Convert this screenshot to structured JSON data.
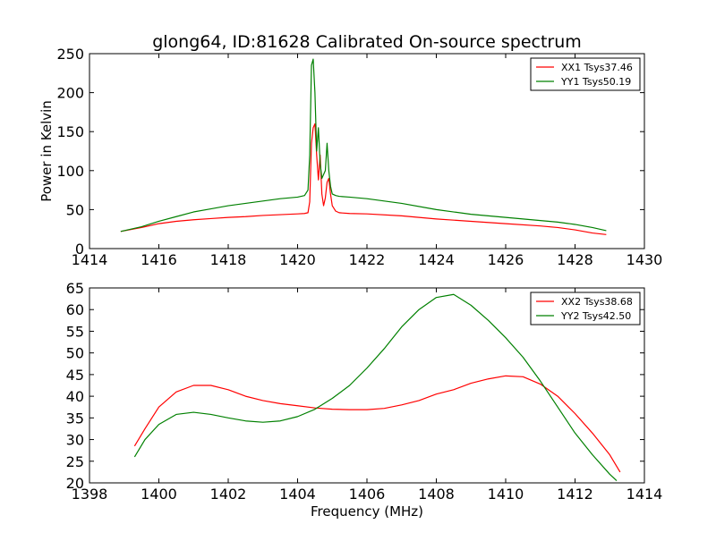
{
  "figure": {
    "title": "glong64, ID:81628 Calibrated On-source spectrum",
    "ylabel": "Power in Kelvin",
    "xlabel": "Frequency (MHz)"
  },
  "chart_data": [
    {
      "type": "line",
      "title": "glong64, ID:81628 Calibrated On-source spectrum",
      "xlabel": "",
      "ylabel": "Power in Kelvin",
      "xlim": [
        1414,
        1430
      ],
      "ylim": [
        0,
        250
      ],
      "xticks": [
        "1414",
        "1416",
        "1418",
        "1420",
        "1422",
        "1424",
        "1426",
        "1428",
        "1430"
      ],
      "yticks": [
        "0",
        "50",
        "100",
        "150",
        "200",
        "250"
      ],
      "legend": "top-right",
      "series": [
        {
          "name": "XX1 Tsys37.46",
          "color": "#ff0000",
          "x": [
            1414.9,
            1415.5,
            1416.0,
            1416.5,
            1417.0,
            1417.5,
            1418.0,
            1418.5,
            1419.0,
            1419.5,
            1420.0,
            1420.2,
            1420.3,
            1420.35,
            1420.4,
            1420.45,
            1420.5,
            1420.55,
            1420.6,
            1420.65,
            1420.7,
            1420.75,
            1420.8,
            1420.85,
            1420.9,
            1420.95,
            1421.0,
            1421.1,
            1421.2,
            1421.5,
            1422.0,
            1423.0,
            1424.0,
            1425.0,
            1426.0,
            1427.0,
            1427.5,
            1428.0,
            1428.5,
            1428.9
          ],
          "values": [
            22,
            27,
            32,
            35,
            37,
            38.5,
            40,
            41,
            42.5,
            43.5,
            44.5,
            45,
            46,
            60,
            135,
            155,
            160,
            120,
            88,
            120,
            70,
            55,
            65,
            85,
            90,
            70,
            55,
            48,
            46,
            45,
            44.5,
            42,
            38,
            35,
            32,
            29,
            27,
            24,
            20,
            18
          ]
        },
        {
          "name": "YY1 Tsys50.19",
          "color": "#008000",
          "x": [
            1414.9,
            1415.5,
            1416.0,
            1416.5,
            1417.0,
            1417.5,
            1418.0,
            1418.5,
            1419.0,
            1419.5,
            1420.0,
            1420.2,
            1420.3,
            1420.35,
            1420.4,
            1420.45,
            1420.5,
            1420.55,
            1420.6,
            1420.65,
            1420.7,
            1420.75,
            1420.8,
            1420.85,
            1420.9,
            1420.95,
            1421.0,
            1421.1,
            1421.2,
            1421.5,
            1422.0,
            1423.0,
            1424.0,
            1425.0,
            1426.0,
            1427.0,
            1427.5,
            1428.0,
            1428.5,
            1428.9
          ],
          "values": [
            22,
            28,
            35,
            41,
            47,
            51,
            55,
            58,
            61,
            64,
            66,
            68,
            75,
            120,
            235,
            243,
            200,
            125,
            155,
            110,
            90,
            95,
            100,
            135,
            100,
            80,
            70,
            68,
            67,
            66,
            64,
            58,
            50,
            44,
            40,
            36,
            34,
            31,
            27,
            23
          ]
        }
      ]
    },
    {
      "type": "line",
      "title": "",
      "xlabel": "Frequency (MHz)",
      "ylabel": "",
      "xlim": [
        1398,
        1414
      ],
      "ylim": [
        20,
        65
      ],
      "xticks": [
        "1398",
        "1400",
        "1402",
        "1404",
        "1406",
        "1408",
        "1410",
        "1412",
        "1414"
      ],
      "yticks": [
        "20",
        "25",
        "30",
        "35",
        "40",
        "45",
        "50",
        "55",
        "60",
        "65"
      ],
      "legend": "top-right",
      "series": [
        {
          "name": "XX2 Tsys38.68",
          "color": "#ff0000",
          "x": [
            1399.3,
            1399.6,
            1400.0,
            1400.5,
            1401.0,
            1401.5,
            1402.0,
            1402.5,
            1403.0,
            1403.5,
            1404.0,
            1404.5,
            1405.0,
            1405.5,
            1406.0,
            1406.5,
            1407.0,
            1407.5,
            1408.0,
            1408.5,
            1409.0,
            1409.5,
            1410.0,
            1410.5,
            1411.0,
            1411.5,
            1412.0,
            1412.5,
            1413.0,
            1413.3
          ],
          "values": [
            28.5,
            32.5,
            37.5,
            41,
            42.5,
            42.5,
            41.5,
            40,
            39,
            38.3,
            37.8,
            37.3,
            37,
            36.9,
            36.9,
            37.2,
            38,
            39,
            40.5,
            41.5,
            43,
            44,
            44.7,
            44.5,
            42.8,
            40,
            36,
            31.5,
            26.5,
            22.5
          ]
        },
        {
          "name": "YY2 Tsys42.50",
          "color": "#008000",
          "x": [
            1399.3,
            1399.6,
            1400.0,
            1400.5,
            1401.0,
            1401.5,
            1402.0,
            1402.5,
            1403.0,
            1403.5,
            1404.0,
            1404.5,
            1405.0,
            1405.5,
            1406.0,
            1406.5,
            1407.0,
            1407.5,
            1408.0,
            1408.5,
            1409.0,
            1409.5,
            1410.0,
            1410.5,
            1411.0,
            1411.5,
            1412.0,
            1412.5,
            1413.0,
            1413.2
          ],
          "values": [
            26,
            30,
            33.5,
            35.8,
            36.3,
            35.8,
            35,
            34.3,
            34,
            34.3,
            35.3,
            37,
            39.5,
            42.5,
            46.5,
            51,
            56,
            60,
            62.8,
            63.5,
            61,
            57.5,
            53.5,
            49,
            43.5,
            37.5,
            31.5,
            26.5,
            22,
            20.5
          ]
        }
      ]
    }
  ]
}
